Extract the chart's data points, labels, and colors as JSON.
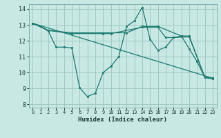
{
  "xlabel": "Humidex (Indice chaleur)",
  "xlim": [
    -0.5,
    23.5
  ],
  "ylim": [
    7.8,
    14.3
  ],
  "yticks": [
    8,
    9,
    10,
    11,
    12,
    13,
    14
  ],
  "xticks": [
    0,
    1,
    2,
    3,
    4,
    5,
    6,
    7,
    8,
    9,
    10,
    11,
    12,
    13,
    14,
    15,
    16,
    17,
    18,
    19,
    20,
    21,
    22,
    23
  ],
  "background_color": "#c8e8e4",
  "grid_color": "#a0c8c4",
  "line_color": "#1a7a6e",
  "lines": [
    {
      "x": [
        0,
        1,
        2,
        3,
        4,
        5,
        6,
        7,
        8,
        9,
        10,
        11,
        12,
        13,
        14,
        15,
        16,
        17,
        18,
        19,
        20,
        21,
        22,
        23
      ],
      "y": [
        13.1,
        12.9,
        12.6,
        11.6,
        11.6,
        11.55,
        9.05,
        8.5,
        8.7,
        10.0,
        10.4,
        11.0,
        12.9,
        13.25,
        14.1,
        12.1,
        11.4,
        11.6,
        12.2,
        12.3,
        11.5,
        10.7,
        9.7,
        9.6
      ]
    },
    {
      "x": [
        0,
        23
      ],
      "y": [
        13.1,
        9.65
      ]
    },
    {
      "x": [
        0,
        2,
        5,
        10,
        12,
        14,
        16,
        19,
        20,
        22,
        23
      ],
      "y": [
        13.1,
        12.65,
        12.5,
        12.5,
        12.5,
        12.9,
        12.9,
        12.3,
        12.3,
        9.7,
        9.65
      ]
    },
    {
      "x": [
        0,
        2,
        5,
        9,
        10,
        14,
        16,
        17,
        18,
        20,
        22,
        23
      ],
      "y": [
        13.1,
        12.65,
        12.45,
        12.45,
        12.45,
        12.85,
        12.85,
        12.2,
        12.2,
        12.25,
        9.7,
        9.65
      ]
    }
  ]
}
